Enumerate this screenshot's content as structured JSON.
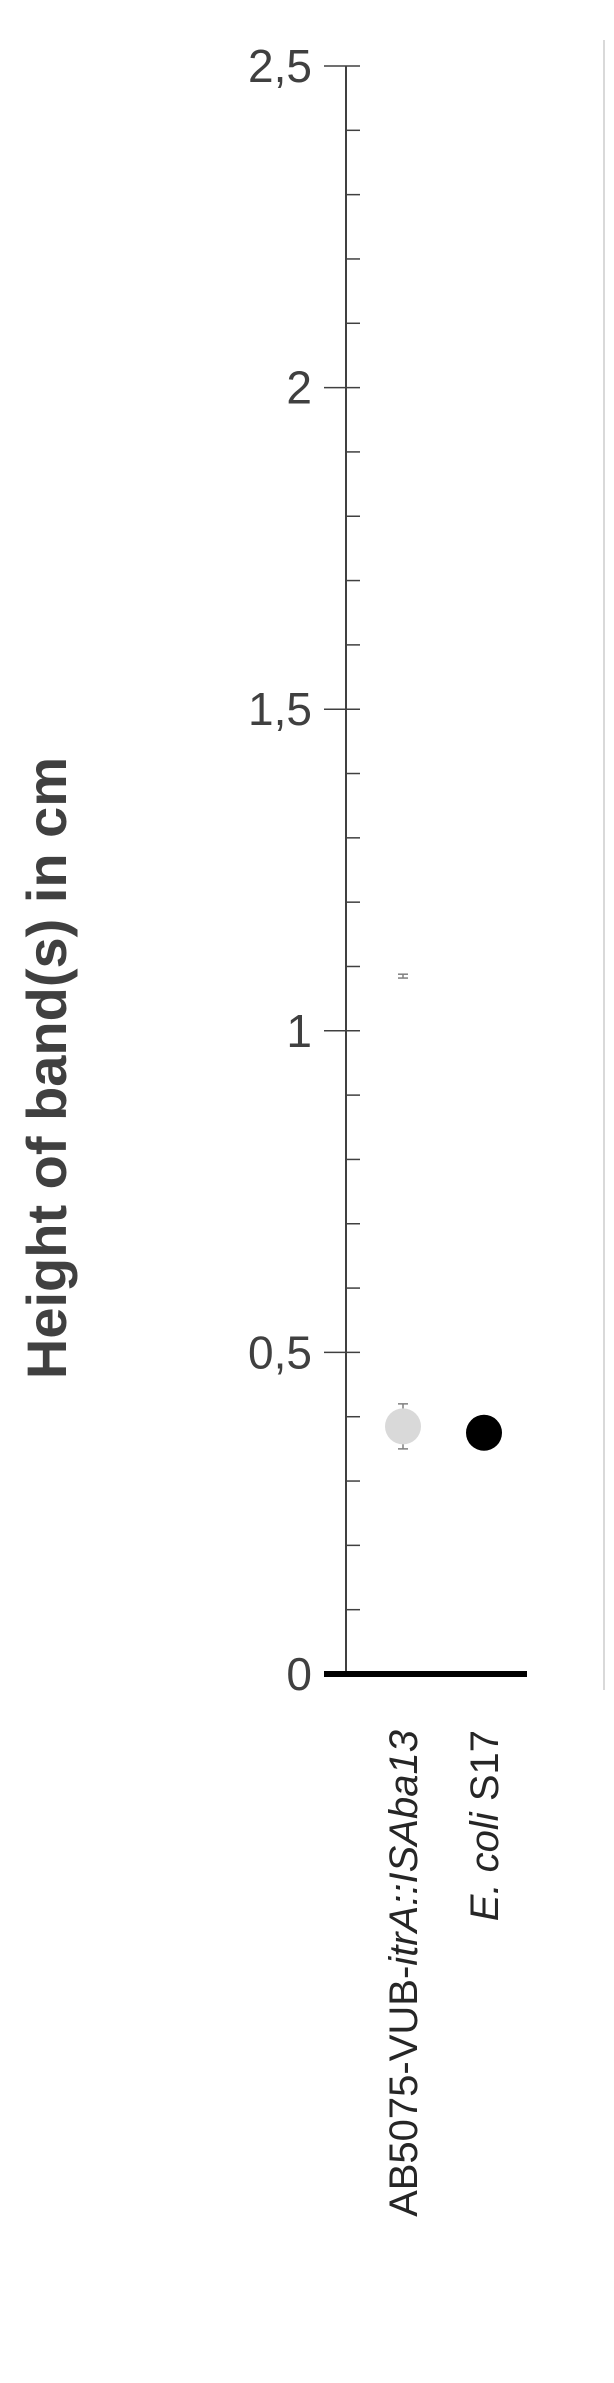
{
  "chart_data": {
    "type": "scatter",
    "ylabel": "Height of band(s) in cm",
    "ylim": [
      0,
      2.5
    ],
    "major_ticks": [
      0,
      0.5,
      1,
      1.5,
      2,
      2.5
    ],
    "tick_labels": [
      "0",
      "0,5",
      "1",
      "1,5",
      "2",
      "2,5"
    ],
    "minor_tick_step": 0.1,
    "grid": false,
    "categories": [
      {
        "parts": [
          {
            "text": "AB5075-VUB-",
            "italic": false
          },
          {
            "text": "itrA::ISAba13",
            "italic": true
          }
        ]
      },
      {
        "parts": [
          {
            "text": "E. coli",
            "italic": true
          },
          {
            "text": " S17",
            "italic": false
          }
        ]
      }
    ],
    "series": [
      {
        "color": "#d9d9d9",
        "points": [
          {
            "category": 0,
            "y": 0.385,
            "error": 0.035
          },
          {
            "category": 0,
            "y": 1.085,
            "error": 0.003,
            "marker": false
          }
        ]
      },
      {
        "color": "#000000",
        "points": [
          {
            "category": 1,
            "y": 0.375,
            "error": 0.025
          }
        ]
      }
    ]
  }
}
